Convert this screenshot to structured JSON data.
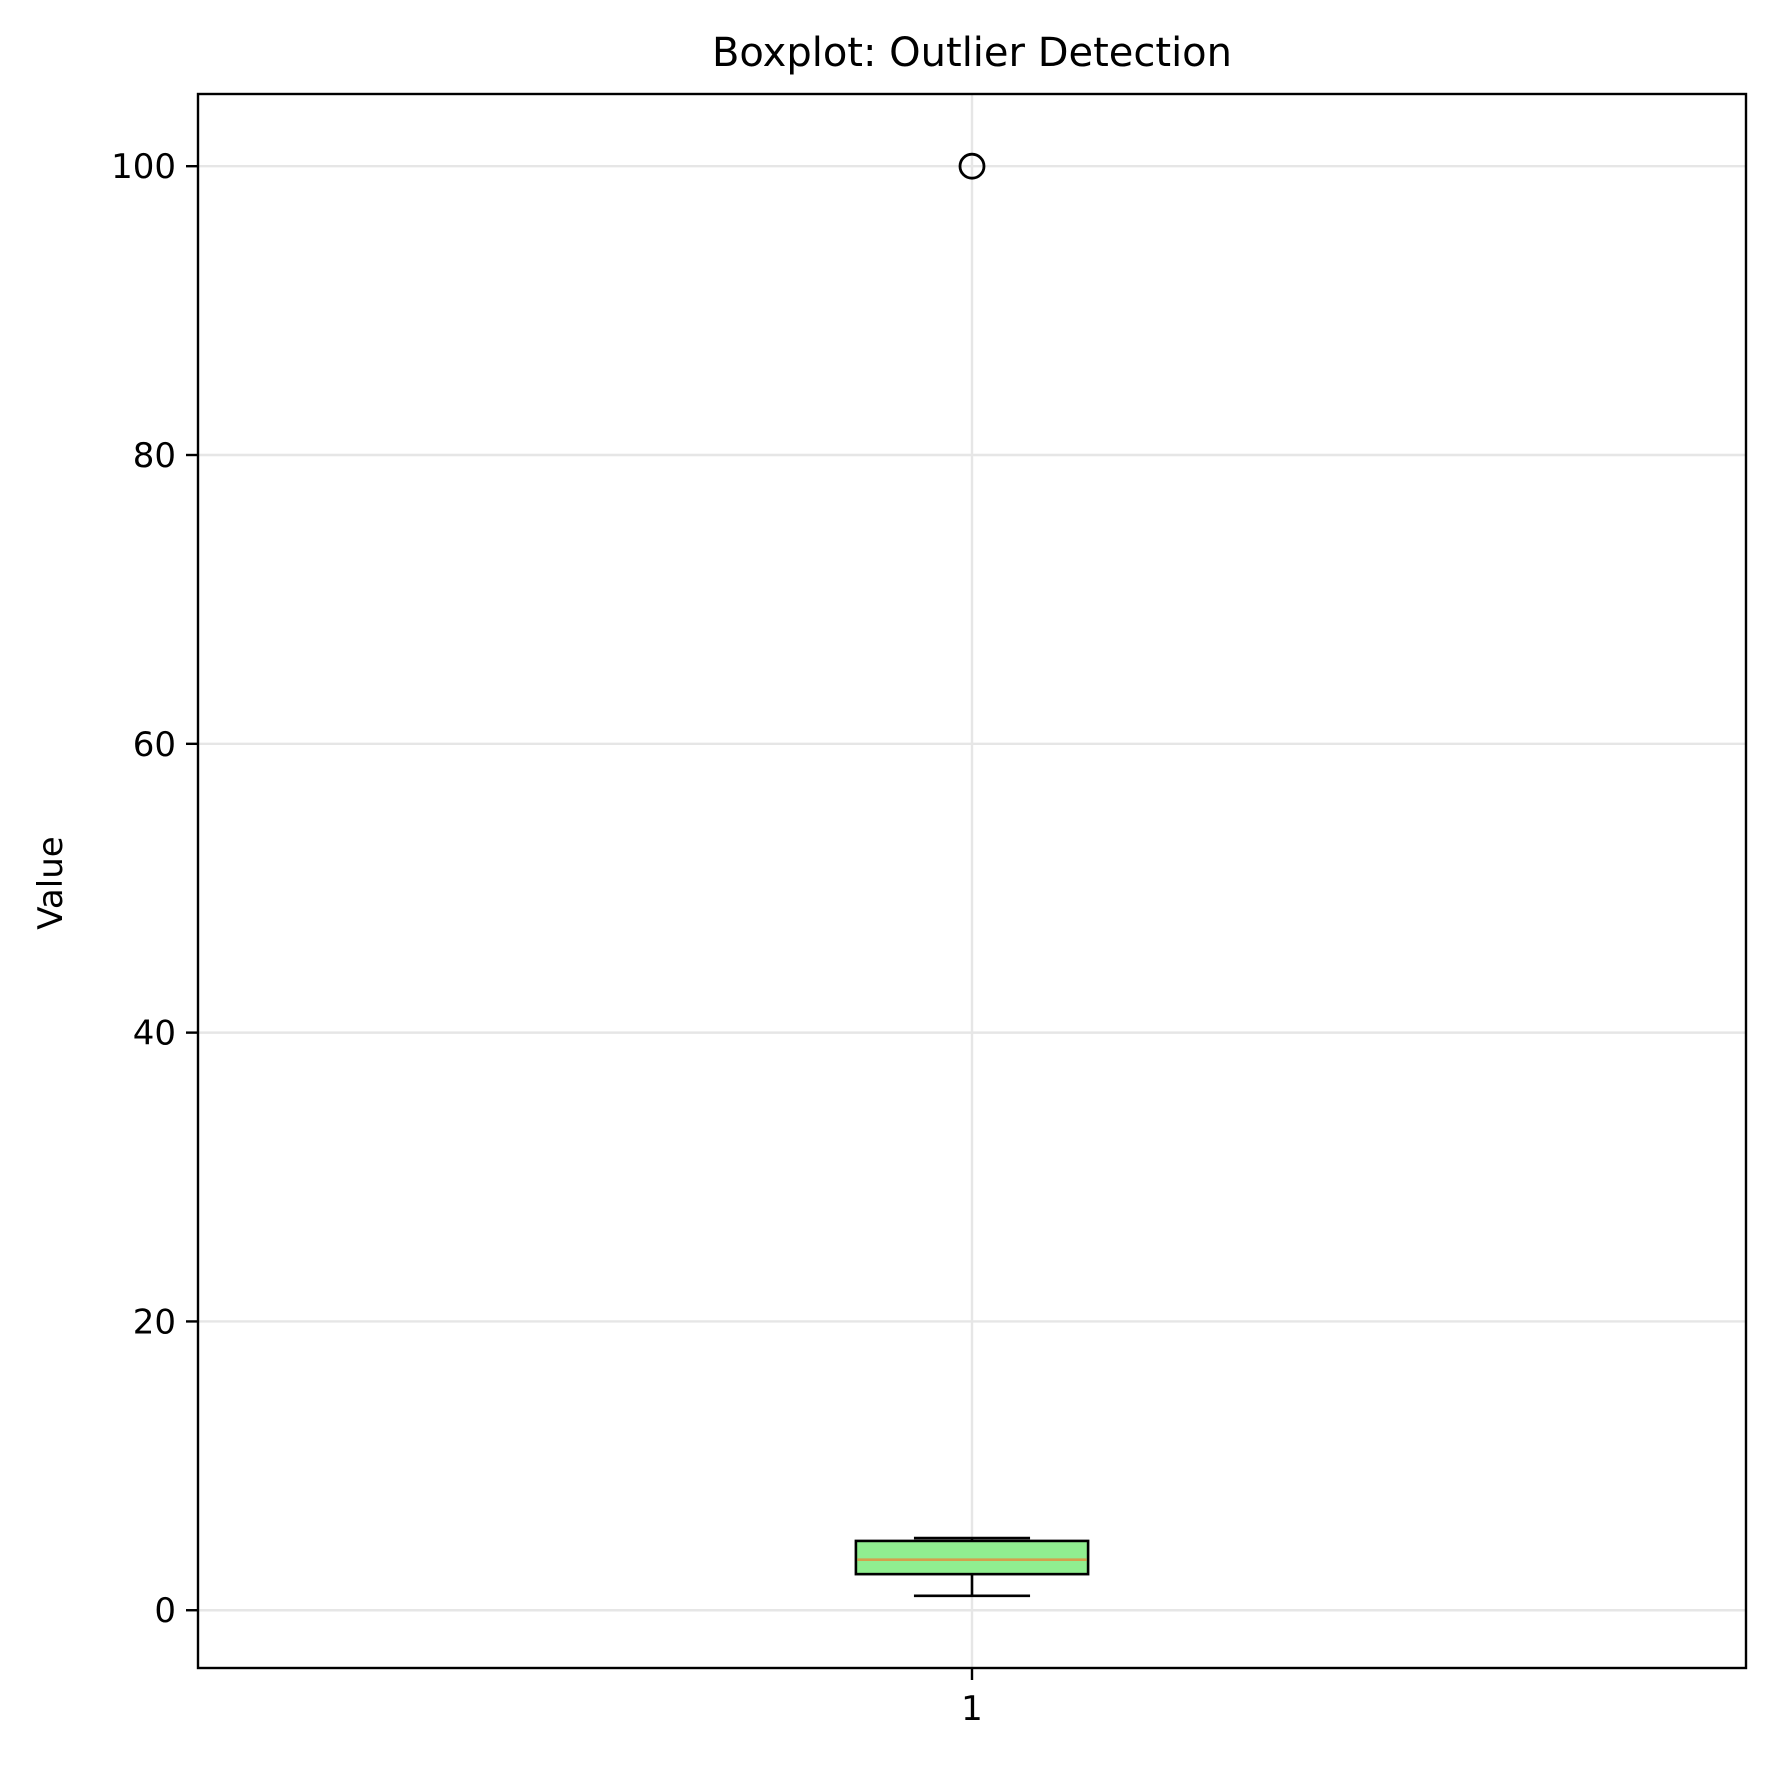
{
  "chart_data": {
    "type": "box",
    "title": "Boxplot: Outlier Detection",
    "xlabel": "",
    "ylabel": "Value",
    "categories": [
      "1"
    ],
    "boxes": [
      {
        "category": "1",
        "whisker_low": 1,
        "q1": 2.5,
        "median": 3.5,
        "q3": 4.8,
        "whisker_high": 5,
        "outliers": [
          100
        ]
      }
    ],
    "ylim": [
      -4,
      105
    ],
    "yticks": [
      0,
      20,
      40,
      60,
      80,
      100
    ],
    "grid": true,
    "colors": {
      "box_fill": "#90EE90",
      "box_edge": "#000000",
      "median": "#D4A04C",
      "grid": "#E6E6E6",
      "outlier": "#000000"
    }
  }
}
